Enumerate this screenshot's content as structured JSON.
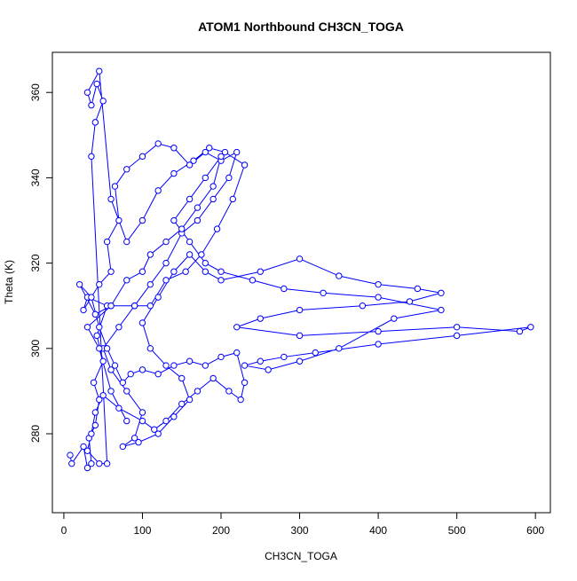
{
  "chart_data": {
    "type": "line",
    "title": "ATOM1 Northbound CH3CN_TOGA",
    "x_label": "CH3CN_TOGA",
    "y_label": "Theta (K)",
    "x": [
      8,
      10,
      25,
      30,
      35,
      32,
      40,
      45,
      38,
      50,
      42,
      55,
      30,
      25,
      45,
      60,
      55,
      70,
      65,
      80,
      100,
      120,
      140,
      160,
      180,
      200,
      220,
      210,
      190,
      170,
      150,
      130,
      110,
      90,
      70,
      50,
      60,
      80,
      100,
      90,
      75,
      95,
      120,
      140,
      160,
      150,
      130,
      110,
      100,
      120,
      140,
      160,
      180,
      200,
      250,
      300,
      350,
      400,
      450,
      480,
      440,
      380,
      300,
      250,
      220,
      300,
      400,
      500,
      580,
      594,
      500,
      400,
      320,
      280,
      250,
      230,
      260,
      300,
      350,
      420,
      480,
      400,
      330,
      280,
      240,
      200,
      180,
      160,
      140,
      160,
      180,
      200,
      190,
      170,
      150,
      130,
      110,
      100,
      80,
      60,
      40,
      20,
      35,
      45,
      55,
      65,
      75,
      85,
      100,
      120,
      140,
      160,
      180,
      200,
      220,
      230,
      225,
      210,
      190,
      170,
      150,
      130,
      115,
      100,
      70,
      50,
      40,
      35,
      30,
      45,
      55,
      35,
      40,
      50,
      42,
      35,
      30,
      45,
      60,
      80,
      100,
      120,
      140,
      165,
      185,
      205,
      230,
      215,
      195,
      175,
      155,
      130,
      110,
      90,
      60,
      30,
      45,
      60,
      80
    ],
    "series": [
      {
        "name": "Theta",
        "color": "#0000ff",
        "values": [
          275,
          273,
          277,
          272,
          273,
          279,
          282,
          288,
          292,
          297,
          303,
          310,
          312,
          309,
          315,
          318,
          325,
          330,
          338,
          342,
          345,
          348,
          347,
          343,
          346,
          344,
          346,
          340,
          335,
          330,
          327,
          320,
          315,
          310,
          305,
          300,
          295,
          290,
          285,
          279,
          277,
          278,
          280,
          284,
          288,
          293,
          296,
          300,
          306,
          312,
          318,
          322,
          318,
          316,
          318,
          321,
          317,
          315,
          314,
          313,
          311,
          310,
          309,
          307,
          305,
          303,
          304,
          305,
          304,
          305,
          303,
          301,
          299,
          298,
          297,
          296,
          295,
          297,
          300,
          307,
          309,
          312,
          313,
          314,
          316,
          318,
          320,
          325,
          330,
          335,
          340,
          345,
          338,
          333,
          328,
          325,
          322,
          318,
          316,
          310,
          308,
          315,
          312,
          305,
          300,
          296,
          292,
          294,
          295,
          294,
          296,
          297,
          296,
          298,
          299,
          292,
          288,
          290,
          293,
          290,
          287,
          283,
          281,
          283,
          286,
          289,
          285,
          280,
          276,
          273,
          273,
          345,
          353,
          358,
          362,
          357,
          360,
          365,
          335,
          325,
          330,
          337,
          341,
          344,
          347,
          346,
          343,
          335,
          328,
          322,
          318,
          316,
          310,
          310,
          310,
          305,
          300,
          290,
          283
        ]
      }
    ],
    "xlim": [
      -14.6,
      619
    ],
    "ylim": [
      261.5,
      369.4
    ],
    "xticks": [
      0,
      100,
      200,
      300,
      400,
      500,
      600
    ],
    "yticks": [
      280,
      300,
      320,
      340,
      360
    ],
    "grid": false
  }
}
